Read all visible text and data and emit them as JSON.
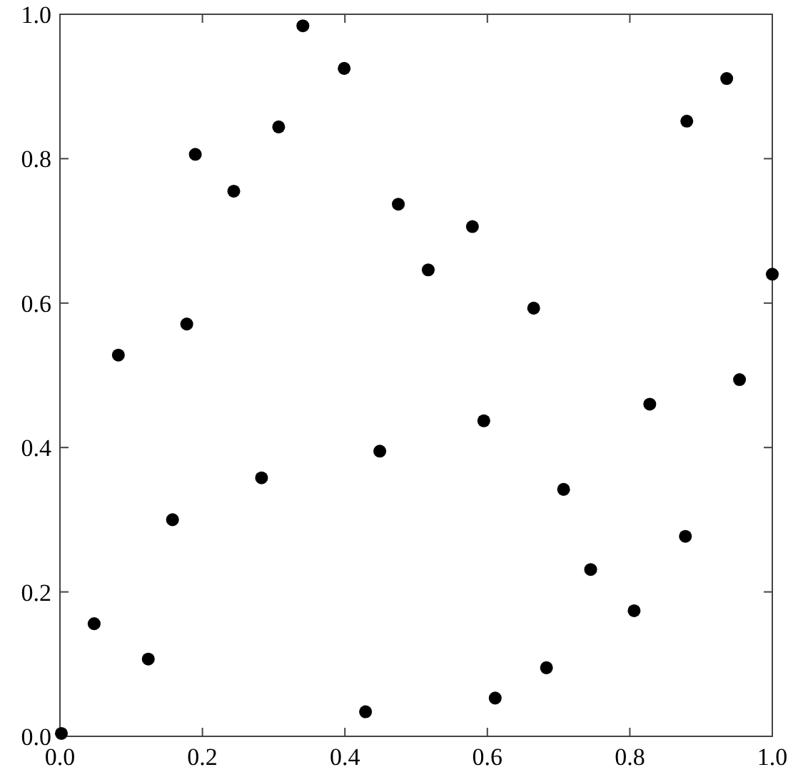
{
  "chart_data": {
    "type": "scatter",
    "marker": "circle",
    "xlim": [
      0,
      1
    ],
    "ylim": [
      0,
      1
    ],
    "xticks": [
      {
        "value": 0,
        "label": "0.0"
      },
      0.2,
      0.4,
      0.6,
      0.8,
      {
        "value": 1,
        "label": "1.0"
      }
    ],
    "yticks": [
      {
        "value": 0,
        "label": "0.0"
      },
      0.2,
      0.4,
      0.6,
      0.8,
      {
        "value": 1,
        "label": "1.0"
      }
    ],
    "grid": false,
    "series": [
      {
        "color": "#000000",
        "x": [
          0.002,
          0.048,
          0.124,
          0.082,
          0.158,
          0.178,
          0.19,
          0.244,
          0.283,
          0.307,
          0.341,
          0.399,
          0.429,
          0.449,
          0.475,
          0.517,
          0.579,
          0.595,
          0.611,
          0.683,
          0.665,
          0.707,
          0.745,
          0.806,
          0.828,
          0.878,
          0.88,
          0.936,
          0.954,
          1.0
        ],
        "values": [
          0.004,
          0.156,
          0.107,
          0.528,
          0.3,
          0.571,
          0.806,
          0.755,
          0.358,
          0.844,
          0.984,
          0.925,
          0.034,
          0.395,
          0.737,
          0.646,
          0.706,
          0.437,
          0.053,
          0.095,
          0.593,
          0.342,
          0.231,
          0.174,
          0.46,
          0.277,
          0.852,
          0.911,
          0.494,
          0.64
        ]
      }
    ]
  }
}
